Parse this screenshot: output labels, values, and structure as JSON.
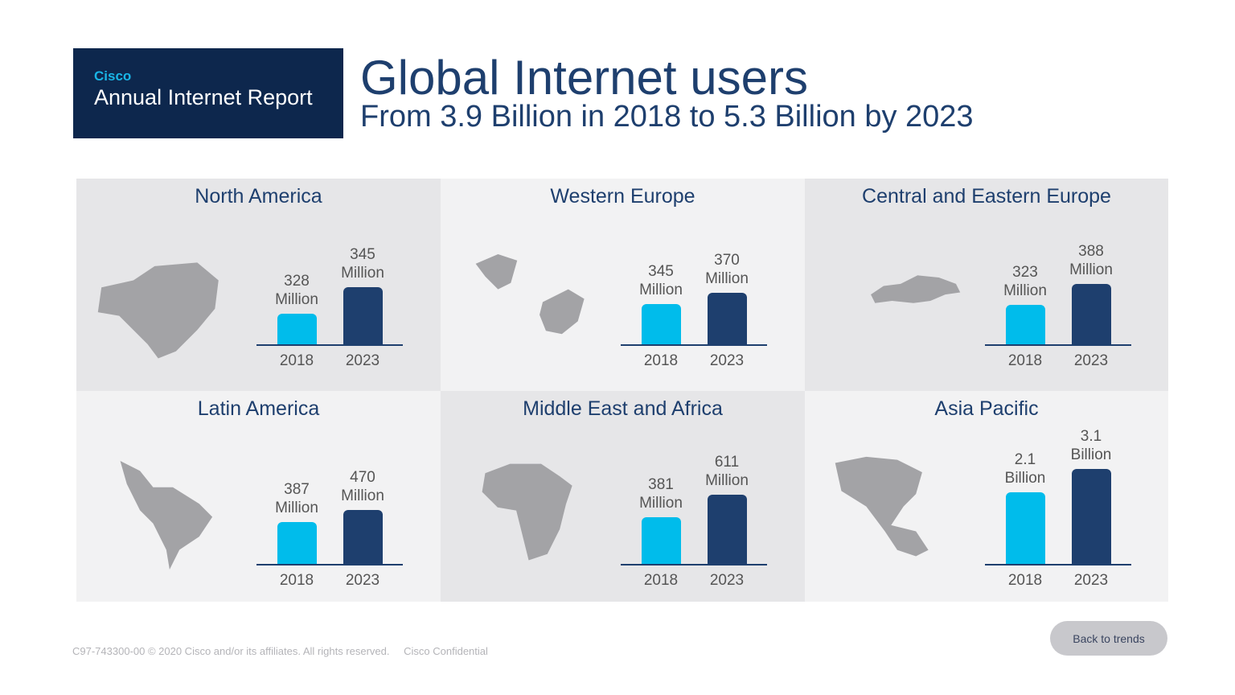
{
  "brand": {
    "company": "Cisco",
    "report": "Annual Internet Report"
  },
  "header": {
    "title": "Global Internet users",
    "subtitle": "From 3.9 Billion in 2018 to 5.3 Billion by 2023"
  },
  "colors": {
    "bar_2018": "#00bceb",
    "bar_2023": "#1e3f6e",
    "brand_bg": "#0d274d"
  },
  "chart_data": {
    "type": "bar",
    "categories": [
      "2018",
      "2023"
    ],
    "regions": [
      {
        "name": "North America",
        "map_icon": "north-america-map",
        "values": [
          {
            "value": "328",
            "unit": "Million"
          },
          {
            "value": "345",
            "unit": "Million"
          }
        ]
      },
      {
        "name": "Western Europe",
        "map_icon": "western-europe-map",
        "values": [
          {
            "value": "345",
            "unit": "Million"
          },
          {
            "value": "370",
            "unit": "Million"
          }
        ]
      },
      {
        "name": "Central and Eastern Europe",
        "map_icon": "eastern-europe-map",
        "values": [
          {
            "value": "323",
            "unit": "Million"
          },
          {
            "value": "388",
            "unit": "Million"
          }
        ]
      },
      {
        "name": "Latin America",
        "map_icon": "latin-america-map",
        "values": [
          {
            "value": "387",
            "unit": "Million"
          },
          {
            "value": "470",
            "unit": "Million"
          }
        ]
      },
      {
        "name": "Middle East and Africa",
        "map_icon": "africa-map",
        "values": [
          {
            "value": "381",
            "unit": "Million"
          },
          {
            "value": "611",
            "unit": "Million"
          }
        ]
      },
      {
        "name": "Asia Pacific",
        "map_icon": "asia-pacific-map",
        "values": [
          {
            "value": "2.1",
            "unit": "Billion"
          },
          {
            "value": "3.1",
            "unit": "Billion"
          }
        ]
      }
    ]
  },
  "footer": {
    "copyright": "C97-743300-00 © 2020  Cisco and/or its affiliates. All rights reserved.",
    "confidential": "Cisco Confidential"
  },
  "back_button": "Back to trends"
}
